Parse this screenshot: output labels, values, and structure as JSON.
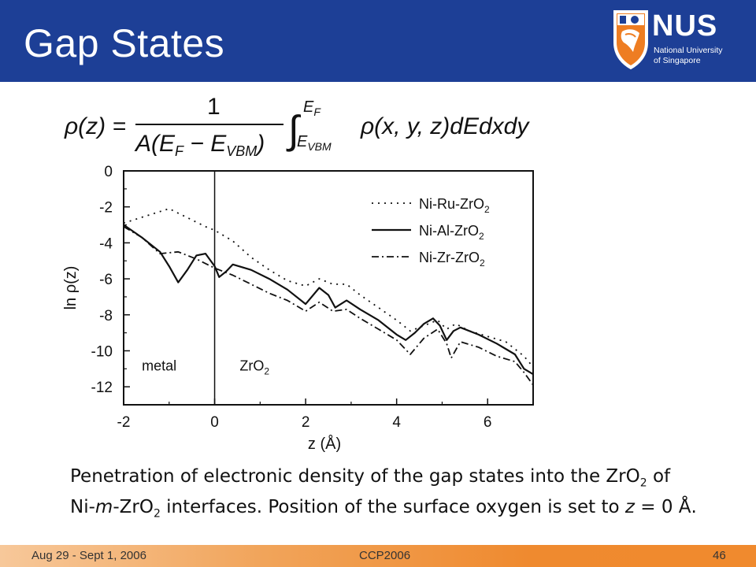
{
  "header": {
    "title": "Gap States"
  },
  "logo": {
    "name": "NUS",
    "line1": "National University",
    "line2": "of Singapore"
  },
  "formula": {
    "lhs": "ρ(z) =",
    "numerator": "1",
    "denominator": "A(E",
    "den_sub1": "F",
    "den_minus": " − E",
    "den_sub2": "VBM",
    "den_close": ")",
    "integral": "∫",
    "upper": "E",
    "upper_sub": "F",
    "lower": "E",
    "lower_sub": "VBM",
    "integrand": "ρ(x, y, z)dEdxdy"
  },
  "chart_data": {
    "type": "line",
    "xlabel": "z (Å)",
    "ylabel": "ln ρ(z)",
    "xlim": [
      -2,
      7
    ],
    "ylim": [
      -13,
      0
    ],
    "xticks": [
      "-2",
      "0",
      "2",
      "4",
      "6"
    ],
    "yticks": [
      "0",
      "-2",
      "-4",
      "-6",
      "-8",
      "-10",
      "-12"
    ],
    "legend_position": "top-right",
    "legend": [
      {
        "base": "Ni-Ru-ZrO",
        "sub": "2"
      },
      {
        "base": "Ni-Al-ZrO",
        "sub": "2"
      },
      {
        "base": "Ni-Zr-ZrO",
        "sub": "2"
      }
    ],
    "annotations": {
      "metal": "metal",
      "oxide": "ZrO",
      "oxide_sub": "2",
      "interface_z": 0
    },
    "series": [
      {
        "style": "dotted",
        "x": [
          -2,
          -1.5,
          -1.0,
          -0.6,
          -0.2,
          0,
          0.4,
          0.8,
          1.2,
          1.6,
          2.0,
          2.3,
          2.6,
          2.9,
          3.2,
          3.6,
          4.0,
          4.3,
          4.6,
          4.9,
          5.1,
          5.3,
          5.6,
          6.0,
          6.4,
          6.8,
          7.0
        ],
        "y": [
          -2.9,
          -2.5,
          -2.1,
          -2.6,
          -3.1,
          -3.3,
          -3.9,
          -4.8,
          -5.5,
          -6.1,
          -6.4,
          -6.0,
          -6.3,
          -6.3,
          -6.9,
          -7.6,
          -8.3,
          -8.9,
          -8.6,
          -8.3,
          -8.8,
          -8.5,
          -8.9,
          -9.2,
          -9.5,
          -10.3,
          -10.9
        ]
      },
      {
        "style": "solid",
        "x": [
          -2,
          -1.6,
          -1.2,
          -1.0,
          -0.8,
          -0.6,
          -0.4,
          -0.2,
          0,
          0.1,
          0.25,
          0.4,
          0.8,
          1.2,
          1.6,
          2.0,
          2.3,
          2.5,
          2.65,
          2.9,
          3.2,
          3.6,
          4.0,
          4.2,
          4.4,
          4.6,
          4.8,
          4.95,
          5.1,
          5.25,
          5.4,
          5.8,
          6.2,
          6.6,
          6.8,
          7.0
        ],
        "y": [
          -3.0,
          -3.7,
          -4.5,
          -5.3,
          -6.2,
          -5.5,
          -4.7,
          -4.6,
          -5.3,
          -5.9,
          -5.6,
          -5.2,
          -5.5,
          -6.0,
          -6.6,
          -7.4,
          -6.5,
          -6.9,
          -7.6,
          -7.2,
          -7.7,
          -8.3,
          -9.1,
          -9.4,
          -9.0,
          -8.5,
          -8.2,
          -8.6,
          -9.4,
          -8.9,
          -8.7,
          -9.1,
          -9.6,
          -10.2,
          -11.0,
          -11.3
        ]
      },
      {
        "style": "dashdot",
        "x": [
          -2,
          -1.6,
          -1.2,
          -0.8,
          -0.4,
          0,
          0.4,
          0.8,
          1.2,
          1.6,
          2.0,
          2.3,
          2.6,
          2.9,
          3.2,
          3.6,
          4.0,
          4.3,
          4.6,
          4.9,
          5.1,
          5.2,
          5.4,
          5.8,
          6.2,
          6.6,
          6.8,
          7.0
        ],
        "y": [
          -3.1,
          -3.7,
          -4.6,
          -4.5,
          -4.9,
          -5.4,
          -5.8,
          -6.3,
          -6.8,
          -7.2,
          -7.8,
          -7.3,
          -7.8,
          -7.7,
          -8.2,
          -8.8,
          -9.4,
          -10.2,
          -9.3,
          -8.8,
          -9.6,
          -10.4,
          -9.5,
          -9.8,
          -10.3,
          -10.6,
          -11.2,
          -11.9
        ]
      }
    ]
  },
  "caption": {
    "line1_a": "Penetration of electronic density of the gap states into the ZrO",
    "line1_sub": "2",
    "line1_b": " of",
    "line2_a": "Ni-",
    "line2_m": "m",
    "line2_b": "-ZrO",
    "line2_sub": "2",
    "line2_c": " interfaces. Position of the surface oxygen is set to ",
    "line2_z": "z",
    "line2_d": " = 0 Å."
  },
  "footer": {
    "date": "Aug 29 - Sept 1, 2006",
    "conference": "CCP2006",
    "page": "46"
  },
  "colors": {
    "header": "#1d3f96",
    "footer": "#ef8a2f",
    "logo_orange": "#ee7d22"
  }
}
